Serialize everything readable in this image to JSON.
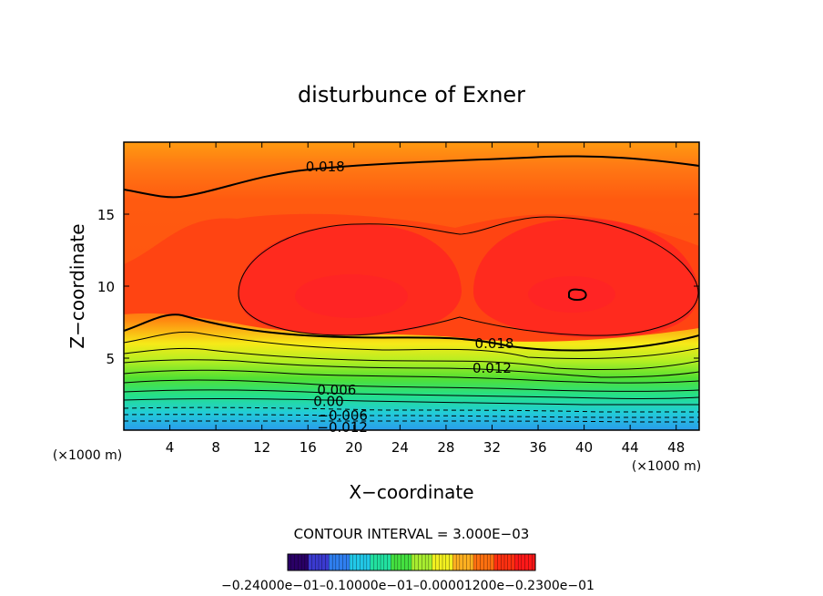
{
  "chart_data": {
    "type": "contour",
    "title": "disturbunce of Exner",
    "xlabel": "X−coordinate",
    "ylabel": "Z−coordinate",
    "x_unit_left": "(×1000 m)",
    "x_unit_right": "(×1000 m)",
    "xlim": [
      0,
      50
    ],
    "ylim": [
      0,
      20
    ],
    "x_ticks": [
      4,
      8,
      12,
      16,
      20,
      24,
      28,
      32,
      36,
      40,
      44,
      48
    ],
    "y_ticks": [
      5,
      10,
      15
    ],
    "contour_interval_text": "CONTOUR INTERVAL = 3.000E−03",
    "contour_labels": [
      {
        "text": "0.018",
        "x": 17.5,
        "z": 18.3
      },
      {
        "text": "0.018",
        "x": 32.2,
        "z": 6.0
      },
      {
        "text": "0.012",
        "x": 32.0,
        "z": 4.3
      },
      {
        "text": "0.006",
        "x": 18.5,
        "z": 2.8
      },
      {
        "text": "0.00",
        "x": 17.8,
        "z": 2.0
      },
      {
        "text": "−0.006",
        "x": 19.0,
        "z": 1.0
      },
      {
        "text": "−0.012",
        "x": 19.0,
        "z": 0.2
      }
    ],
    "colorbar_labels": "−0.24000e−01–0.10000e−01–0.00001200e−0.2300e−01",
    "colorbar_colors": [
      "#2a0066",
      "#3a3ad0",
      "#2f7ff0",
      "#22c8e8",
      "#22e0a0",
      "#44e040",
      "#a8ee30",
      "#f2f020",
      "#ffb020",
      "#ff7010",
      "#ff3010",
      "#ff1818"
    ],
    "field_colors": {
      "max": "#ff2222",
      "high": "#ff4a10",
      "mid": "#ff7a14",
      "upper": "#ff9a10",
      "yellow": "#f6ea18",
      "lime": "#b4ee22",
      "green": "#52e032",
      "mint": "#24e08a",
      "cyan": "#22ccd8",
      "blue": "#2a9cec"
    }
  }
}
